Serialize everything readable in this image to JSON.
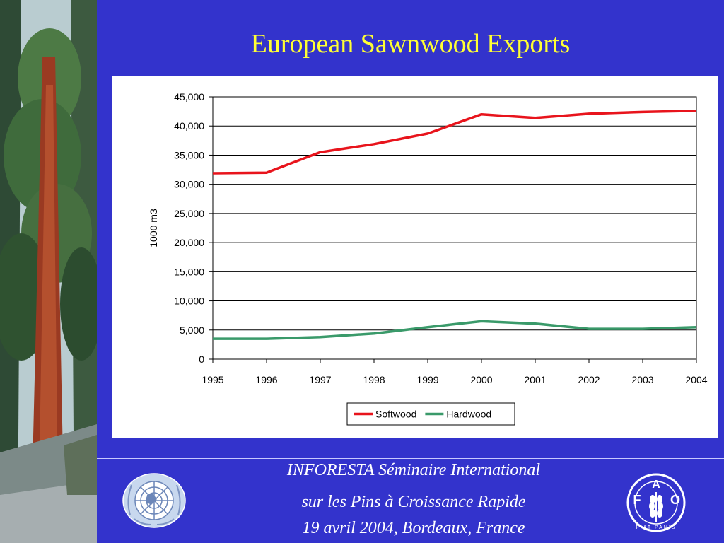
{
  "slide": {
    "title": "European Sawnwood Exports",
    "footer_line1": "INFORESTA Séminaire International",
    "footer_line2": "sur les Pins à Croissance Rapide",
    "footer_line3": "19 avril 2004, Bordeaux, France"
  },
  "logos": {
    "fao_letters": [
      "A",
      "F",
      "O"
    ],
    "fao_motto": "FIAT PANIS"
  },
  "colors": {
    "background": "#3333cc",
    "title": "#ffff33",
    "softwood": "#e8141c",
    "hardwood": "#3a9a6a"
  },
  "chart_data": {
    "type": "line",
    "title": "",
    "xlabel": "",
    "ylabel": "1000 m3",
    "categories": [
      "1995",
      "1996",
      "1997",
      "1998",
      "1999",
      "2000",
      "2001",
      "2002",
      "2003",
      "2004"
    ],
    "ylim": [
      0,
      45000
    ],
    "yticks": [
      "0",
      "5,000",
      "10,000",
      "15,000",
      "20,000",
      "25,000",
      "30,000",
      "35,000",
      "40,000",
      "45,000"
    ],
    "ytick_values": [
      0,
      5000,
      10000,
      15000,
      20000,
      25000,
      30000,
      35000,
      40000,
      45000
    ],
    "grid": true,
    "legend": "bottom",
    "series": [
      {
        "name": "Softwood",
        "color": "#e8141c",
        "values": [
          31900,
          32000,
          35500,
          36900,
          38700,
          42000,
          41400,
          42100,
          42400,
          42600
        ]
      },
      {
        "name": "Hardwood",
        "color": "#3a9a6a",
        "values": [
          3500,
          3500,
          3800,
          4400,
          5500,
          6500,
          6100,
          5200,
          5200,
          5500
        ]
      }
    ]
  }
}
